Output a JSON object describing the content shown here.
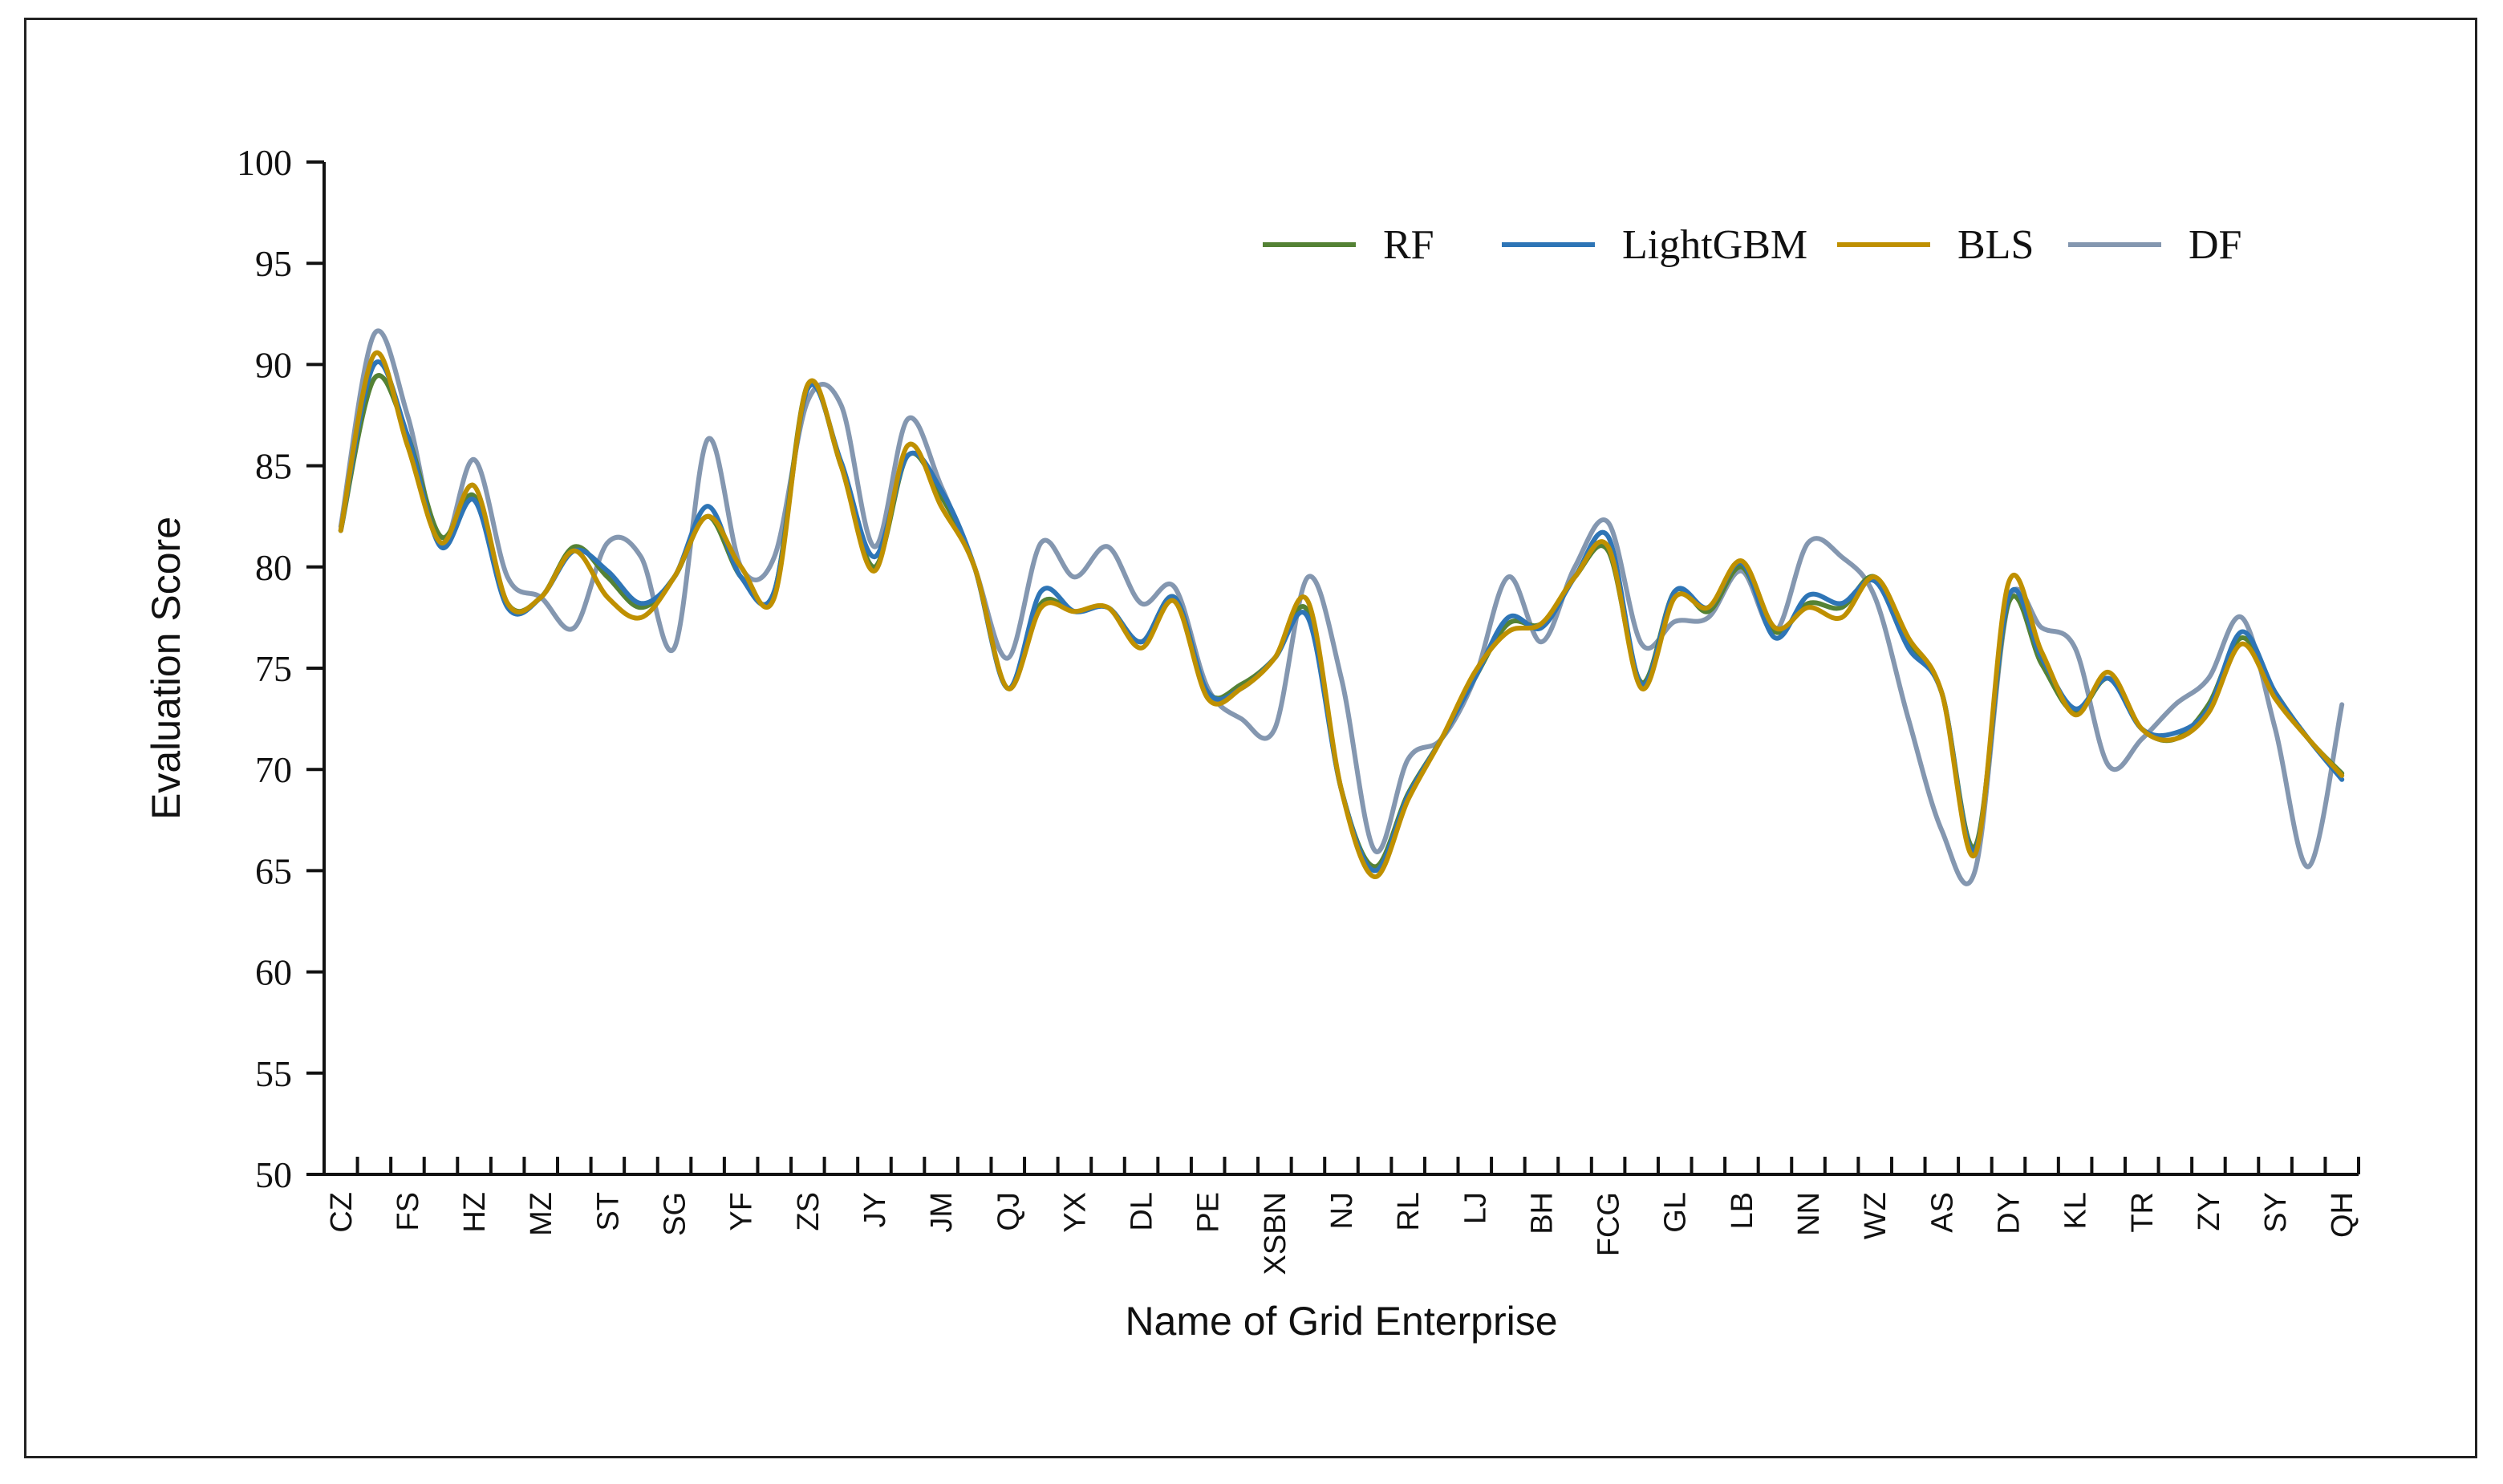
{
  "chart_data": {
    "type": "line",
    "title": "",
    "xlabel": "Name of Grid Enterprise",
    "ylabel": "Evaluation Score",
    "ylim": [
      50,
      100
    ],
    "yticks": [
      50,
      55,
      60,
      65,
      70,
      75,
      80,
      85,
      90,
      95,
      100
    ],
    "grid": false,
    "legend": "top-right",
    "x_labels_shown": [
      "CZ",
      "FS",
      "HZ",
      "MZ",
      "ST",
      "SG",
      "YF",
      "ZS",
      "JY",
      "JM",
      "QJ",
      "YX",
      "DL",
      "PE",
      "XSBN",
      "NJ",
      "RL",
      "LJ",
      "BH",
      "FCG",
      "GL",
      "LB",
      "NN",
      "WZ",
      "AS",
      "DY",
      "KL",
      "TR",
      "ZY",
      "SY",
      "QH"
    ],
    "series": [
      {
        "name": "RF",
        "color": "#548235",
        "values": [
          81.8,
          89.3,
          86.5,
          81.5,
          83.5,
          78.2,
          78.5,
          81.0,
          79.5,
          78.0,
          79.5,
          82.5,
          79.5,
          78.8,
          89.0,
          85.0,
          80.0,
          85.5,
          83.5,
          80.0,
          74.0,
          78.2,
          77.8,
          78.0,
          76.3,
          78.5,
          73.8,
          74.2,
          75.5,
          77.8,
          69.0,
          65.2,
          68.8,
          71.5,
          74.5,
          77.2,
          77.2,
          79.5,
          80.8,
          74.3,
          78.8,
          77.8,
          80.0,
          76.8,
          78.2,
          78.0,
          79.5,
          76.3,
          73.8,
          66.2,
          78.2,
          75.2,
          72.8,
          74.5,
          72.0,
          71.5,
          73.2,
          76.5,
          73.8,
          71.5,
          69.8
        ]
      },
      {
        "name": "LightGBM",
        "color": "#2E75B6",
        "values": [
          81.8,
          90.0,
          86.5,
          81.0,
          83.3,
          78.0,
          78.5,
          80.8,
          79.8,
          78.2,
          79.5,
          83.0,
          79.5,
          78.8,
          88.8,
          85.2,
          80.5,
          85.5,
          83.8,
          80.0,
          74.0,
          78.8,
          77.8,
          78.0,
          76.3,
          78.5,
          73.8,
          74.0,
          75.5,
          77.5,
          69.0,
          65.0,
          68.7,
          71.5,
          74.5,
          77.5,
          77.0,
          79.5,
          81.5,
          74.2,
          78.8,
          78.0,
          80.2,
          76.5,
          78.6,
          78.2,
          79.3,
          76.0,
          73.8,
          66.0,
          78.5,
          75.5,
          73.0,
          74.5,
          72.0,
          71.8,
          73.0,
          76.8,
          73.8,
          71.5,
          69.5
        ]
      },
      {
        "name": "BLS",
        "color": "#BF9000",
        "values": [
          81.8,
          90.5,
          86.0,
          81.2,
          84.0,
          78.2,
          78.5,
          80.8,
          78.5,
          77.5,
          79.5,
          82.5,
          80.0,
          78.5,
          89.0,
          85.0,
          79.8,
          86.0,
          83.0,
          80.0,
          74.0,
          78.0,
          77.8,
          78.0,
          76.0,
          78.3,
          73.5,
          74.0,
          75.5,
          78.3,
          69.0,
          64.7,
          68.5,
          71.5,
          74.8,
          76.8,
          77.2,
          79.5,
          81.0,
          74.0,
          78.5,
          78.0,
          80.3,
          77.0,
          78.0,
          77.5,
          79.5,
          76.5,
          73.8,
          65.8,
          79.2,
          75.8,
          72.7,
          74.8,
          72.0,
          71.5,
          72.8,
          76.2,
          73.5,
          71.5,
          69.7
        ]
      },
      {
        "name": "DF",
        "color": "#8497B0",
        "values": [
          82.0,
          91.5,
          87.5,
          81.0,
          85.3,
          79.5,
          78.5,
          77.0,
          81.2,
          80.5,
          76.0,
          86.3,
          80.0,
          80.5,
          88.2,
          88.0,
          81.0,
          87.3,
          84.0,
          80.0,
          75.5,
          81.2,
          79.5,
          81.0,
          78.2,
          79.0,
          74.0,
          72.5,
          72.0,
          79.5,
          74.5,
          66.0,
          70.5,
          71.5,
          74.5,
          79.5,
          76.3,
          80.0,
          82.2,
          76.2,
          77.3,
          77.5,
          79.8,
          76.8,
          81.2,
          80.5,
          78.5,
          72.5,
          67.0,
          65.0,
          78.2,
          77.0,
          76.0,
          70.2,
          71.5,
          73.2,
          74.5,
          77.5,
          72.0,
          65.2,
          73.2
        ]
      }
    ]
  }
}
